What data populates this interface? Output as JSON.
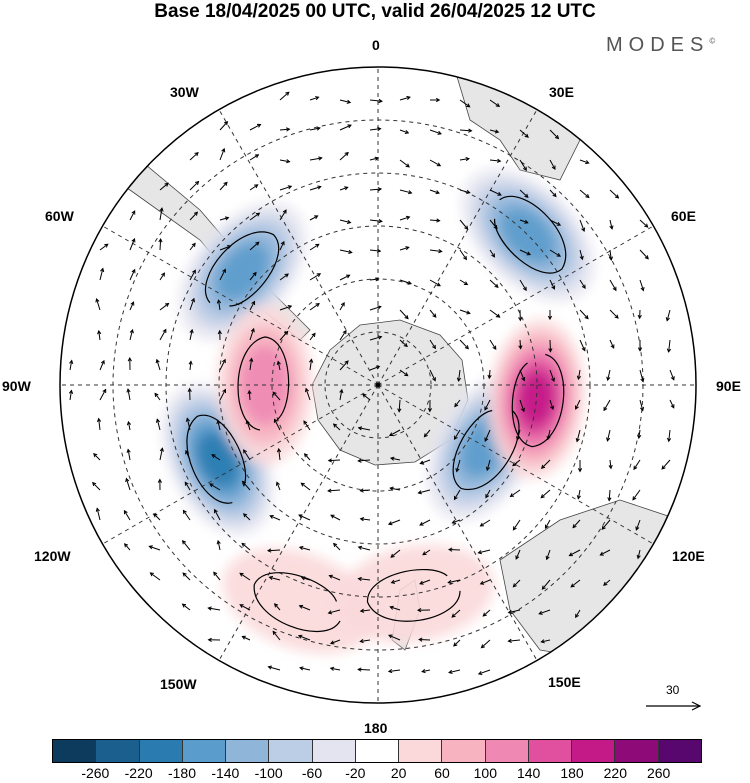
{
  "title": "Base 18/04/2025 00 UTC, valid 26/04/2025 12 UTC",
  "brand": "MODES",
  "brand_mark": "©",
  "longitude_labels": {
    "l0": "0",
    "l30e": "30E",
    "l60e": "60E",
    "l90e": "90E",
    "l120e": "120E",
    "l150e": "150E",
    "l180": "180",
    "l150w": "150W",
    "l120w": "120W",
    "l90w": "90W",
    "l60w": "60W",
    "l30w": "30W"
  },
  "reference_vector": {
    "label": "30"
  },
  "colorbar": {
    "colors": [
      "#0c3b5e",
      "#1a5f8e",
      "#2a7bb0",
      "#5a9ccb",
      "#8fb6d9",
      "#bccde6",
      "#e4e4f0",
      "#ffffff",
      "#fbd9da",
      "#f7b4c0",
      "#f088b4",
      "#e0509f",
      "#c31a87",
      "#8e0a79",
      "#58076e"
    ],
    "labels": [
      "-260",
      "-220",
      "-180",
      "-140",
      "-100",
      "-60",
      "-20",
      "20",
      "60",
      "100",
      "140",
      "180",
      "220",
      "260"
    ]
  },
  "anomaly_features": [
    {
      "value": -180,
      "lon": 45,
      "lat": -30
    },
    {
      "value": -180,
      "lon": -50,
      "lat": -40
    },
    {
      "value": -220,
      "lon": -115,
      "lat": -40
    },
    {
      "value": -180,
      "lon": 120,
      "lat": -55
    },
    {
      "value": 220,
      "lon": 95,
      "lat": -45
    },
    {
      "value": 140,
      "lon": -90,
      "lat": -58
    },
    {
      "value": 60,
      "lon": 170,
      "lat": -30
    },
    {
      "value": 60,
      "lon": -160,
      "lat": -25
    }
  ]
}
